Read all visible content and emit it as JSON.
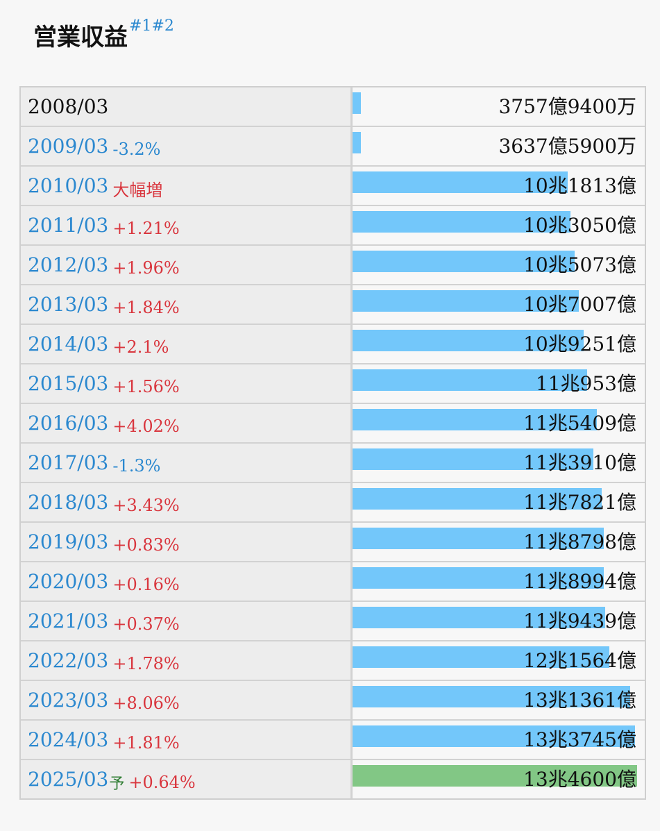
{
  "title": "営業収益",
  "notes": [
    "#1",
    "#2"
  ],
  "colors": {
    "bar_actual": "#73c7fa",
    "bar_forecast": "#82c785",
    "increase": "#d9363e",
    "decrease": "#2b88cf",
    "link": "#2b88cf",
    "forecast_mark": "#2e7d32"
  },
  "chart_data": {
    "type": "bar",
    "orientation": "horizontal",
    "title": "営業収益",
    "unit": "億円",
    "categories": [
      "2008/03",
      "2009/03",
      "2010/03",
      "2011/03",
      "2012/03",
      "2013/03",
      "2014/03",
      "2015/03",
      "2016/03",
      "2017/03",
      "2018/03",
      "2019/03",
      "2020/03",
      "2021/03",
      "2022/03",
      "2023/03",
      "2024/03",
      "2025/03"
    ],
    "values": [
      3757.94,
      3637.59,
      101813,
      103050,
      105073,
      107007,
      109251,
      110953,
      115409,
      113910,
      117821,
      118798,
      118994,
      119439,
      121564,
      131361,
      133745,
      134600
    ],
    "value_labels": [
      "3757億9400万",
      "3637億5900万",
      "10兆1813億",
      "10兆3050億",
      "10兆5073億",
      "10兆7007億",
      "10兆9251億",
      "11兆953億",
      "11兆5409億",
      "11兆3910億",
      "11兆7821億",
      "11兆8798億",
      "11兆8994億",
      "11兆9439億",
      "12兆1564億",
      "13兆1361億",
      "13兆3745億",
      "13兆4600億"
    ],
    "changes": [
      "",
      "-3.2%",
      "大幅増",
      "+1.21%",
      "+1.96%",
      "+1.84%",
      "+2.1%",
      "+1.56%",
      "+4.02%",
      "-1.3%",
      "+3.43%",
      "+0.83%",
      "+0.16%",
      "+0.37%",
      "+1.78%",
      "+8.06%",
      "+1.81%",
      "+0.64%"
    ],
    "forecast": [
      false,
      false,
      false,
      false,
      false,
      false,
      false,
      false,
      false,
      false,
      false,
      false,
      false,
      false,
      false,
      false,
      false,
      true
    ],
    "forecast_label": "予",
    "xlim": [
      0,
      134600
    ]
  }
}
